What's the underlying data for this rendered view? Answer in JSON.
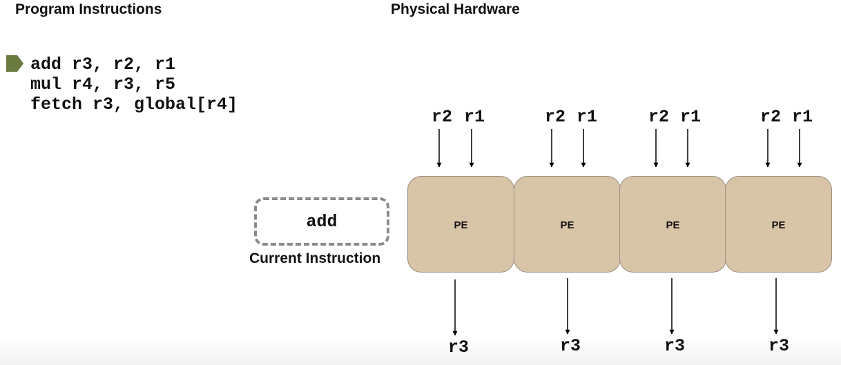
{
  "headings": {
    "program": "Program Instructions",
    "hardware": "Physical Hardware"
  },
  "program": {
    "instructions": [
      "add r3, r2, r1",
      "mul r4, r3, r5",
      "fetch r3, global[r4]"
    ],
    "marker_color": "#6b7b3f",
    "marker_icon": "pentagon-pointer-icon"
  },
  "current_instruction": {
    "value": "add",
    "label": "Current Instruction"
  },
  "processing_elements": [
    {
      "label": "PE",
      "inputs": [
        "r2",
        "r1"
      ],
      "output": "r3"
    },
    {
      "label": "PE",
      "inputs": [
        "r2",
        "r1"
      ],
      "output": "r3"
    },
    {
      "label": "PE",
      "inputs": [
        "r2",
        "r1"
      ],
      "output": "r3"
    },
    {
      "label": "PE",
      "inputs": [
        "r2",
        "r1"
      ],
      "output": "r3"
    }
  ],
  "colors": {
    "pe_fill": "#d8c4a7",
    "pe_border": "#9a8f80",
    "dashed_border": "#8a8a8a"
  }
}
